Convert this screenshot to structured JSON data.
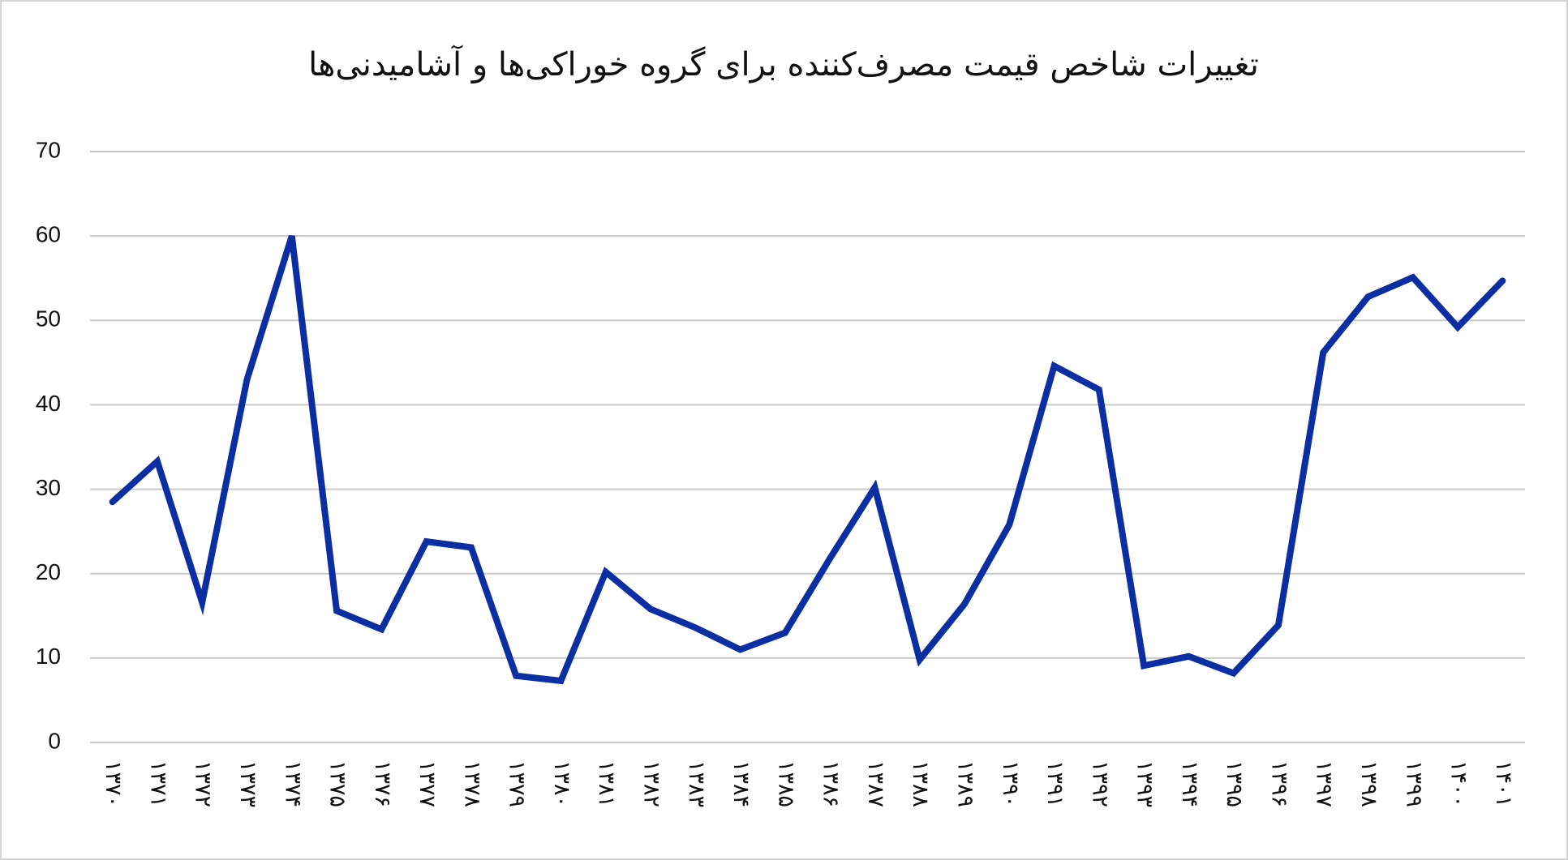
{
  "chart_data": {
    "type": "line",
    "title": "تغییرات شاخص قیمت مصرف‌کننده برای گروه خوراکی‌ها و آشامیدنی‌ها",
    "categories": [
      "۱۳۷۰",
      "۱۳۷۱",
      "۱۳۷۲",
      "۱۳۷۳",
      "۱۳۷۴",
      "۱۳۷۵",
      "۱۳۷۶",
      "۱۳۷۷",
      "۱۳۷۸",
      "۱۳۷۹",
      "۱۳۸۰",
      "۱۳۸۱",
      "۱۳۸۲",
      "۱۳۸۳",
      "۱۳۸۴",
      "۱۳۸۵",
      "۱۳۸۶",
      "۱۳۸۷",
      "۱۳۸۸",
      "۱۳۸۹",
      "۱۳۹۰",
      "۱۳۹۱",
      "۱۳۹۲",
      "۱۳۹۳",
      "۱۳۹۴",
      "۱۳۹۵",
      "۱۳۹۶",
      "۱۳۹۷",
      "۱۳۹۸",
      "۱۳۹۹",
      "۱۴۰۰",
      "۱۴۰۱"
    ],
    "values": [
      28.5,
      33.3,
      16.6,
      43,
      60,
      15.6,
      13.4,
      23.8,
      23.1,
      7.9,
      7.3,
      20.2,
      15.8,
      13.6,
      11.0,
      13.0,
      21.8,
      30.2,
      9.8,
      16.4,
      25.8,
      44.6,
      41.8,
      9.1,
      10.2,
      8.2,
      13.9,
      46.2,
      52.8,
      55.1,
      49.2,
      54.7
    ],
    "color": "#0b2fa3",
    "ylim": [
      0,
      70
    ],
    "yticks": [
      0,
      10,
      20,
      30,
      40,
      50,
      60,
      70
    ],
    "grid": true
  }
}
